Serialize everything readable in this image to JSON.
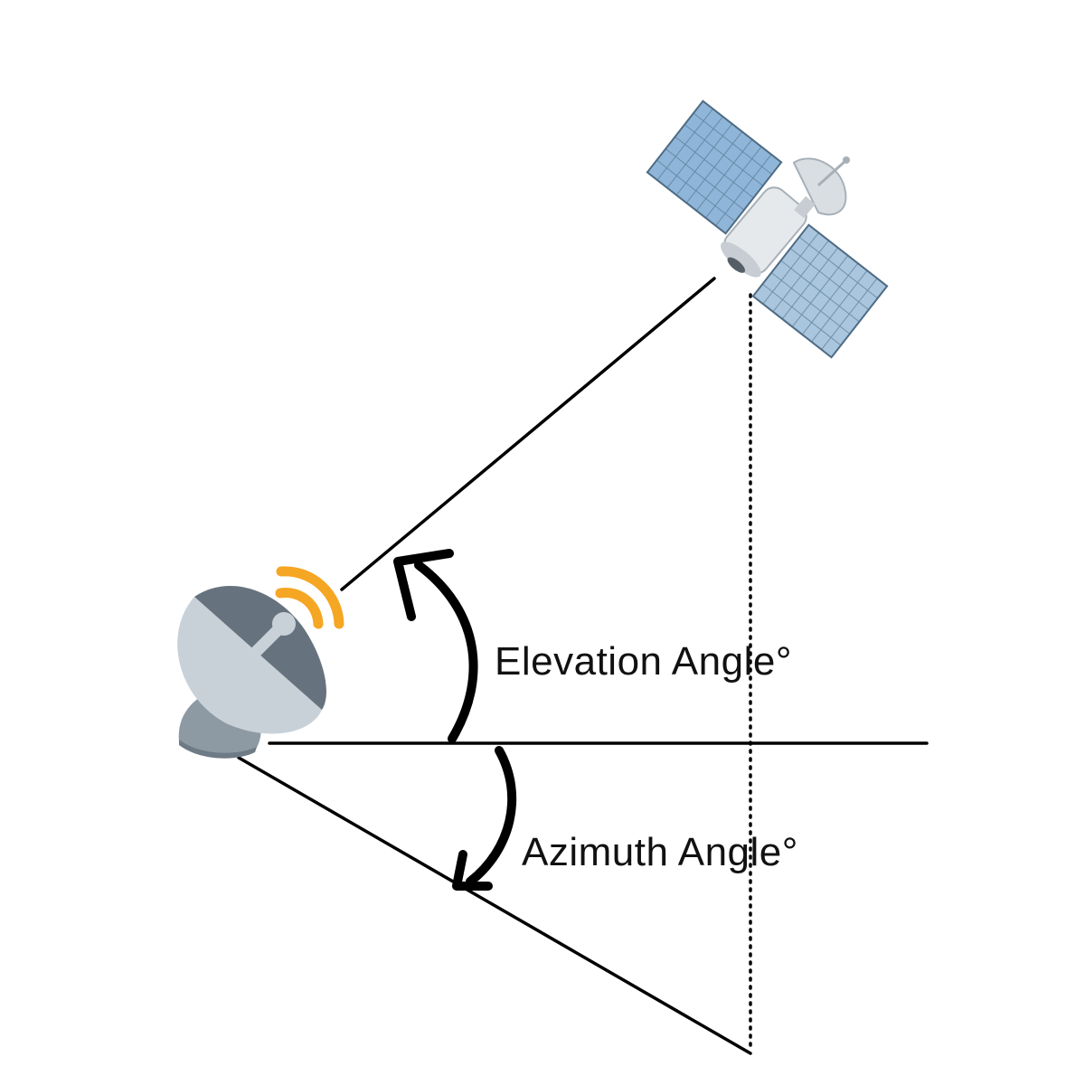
{
  "labels": {
    "elevation": "Elevation Angle°",
    "azimuth": "Azimuth Angle°"
  },
  "icons": {
    "ground_station": "satellite-dish-icon",
    "satellite": "satellite-icon"
  },
  "colors": {
    "line": "#000000",
    "signal_waves": "#F5A623",
    "dish": "#66737F",
    "dish_rim": "#C9D1D8",
    "solar_panel": "#8FB6D8",
    "satellite_body": "#E6E9EC"
  }
}
